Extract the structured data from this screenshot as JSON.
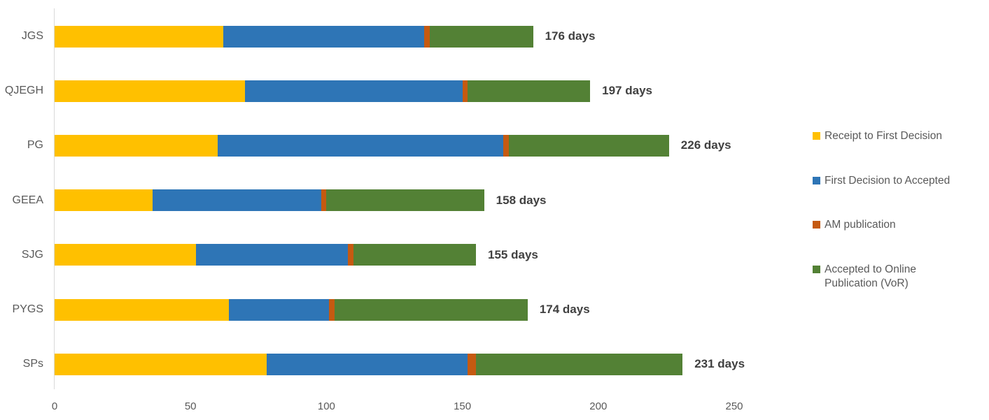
{
  "chart_data": {
    "type": "bar",
    "orientation": "horizontal",
    "stacked": true,
    "title": "",
    "xlabel": "",
    "ylabel": "",
    "categories": [
      "JGS",
      "QJEGH",
      "PG",
      "GEEA",
      "SJG",
      "PYGS",
      "SPs"
    ],
    "series": [
      {
        "name": "Receipt to First Decision",
        "color": "#FFC000",
        "values": [
          62,
          70,
          60,
          36,
          52,
          64,
          78
        ]
      },
      {
        "name": "First Decision to Accepted",
        "color": "#2E75B6",
        "values": [
          74,
          80,
          105,
          62,
          56,
          37,
          74
        ]
      },
      {
        "name": "AM publication",
        "color": "#C55A11",
        "values": [
          2,
          2,
          2,
          2,
          2,
          2,
          3
        ]
      },
      {
        "name": "Accepted to Online Publication (VoR)",
        "color": "#538135",
        "values": [
          38,
          45,
          59,
          58,
          45,
          71,
          76
        ]
      }
    ],
    "totals": [
      176,
      197,
      226,
      158,
      155,
      174,
      231
    ],
    "total_labels": [
      "176 days",
      "197 days",
      "226 days",
      "158 days",
      "155 days",
      "174 days",
      "231 days"
    ],
    "x_ticks": [
      0,
      50,
      100,
      150,
      200,
      250
    ],
    "xlim": [
      0,
      250
    ],
    "grid": false,
    "legend_position": "right"
  },
  "legend": {
    "items": [
      {
        "label": "Receipt to First Decision",
        "color": "#FFC000"
      },
      {
        "label": "First Decision to Accepted",
        "color": "#2E75B6"
      },
      {
        "label": "AM publication",
        "color": "#C55A11"
      },
      {
        "label": "Accepted to Online Publication (VoR)",
        "color": "#538135"
      }
    ]
  },
  "colors": {
    "axis_line": "#d9d9d9",
    "tick_text": "#595959",
    "category_text": "#595959",
    "total_text": "#404040",
    "legend_text": "#595959",
    "background": "#ffffff"
  }
}
